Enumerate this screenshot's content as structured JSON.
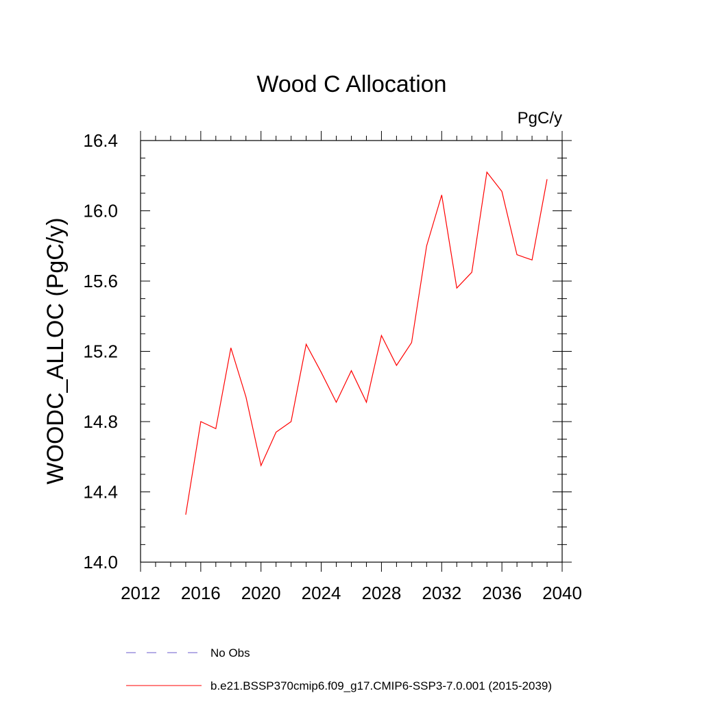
{
  "chart_data": {
    "type": "line",
    "title": "Wood C Allocation",
    "units_label": "PgC/y",
    "ylabel": "WOODC_ALLOC  (PgC/y)",
    "xlabel": "",
    "xlim": [
      2012,
      2040
    ],
    "ylim": [
      14.0,
      16.4
    ],
    "x_ticks": [
      2012,
      2016,
      2020,
      2024,
      2028,
      2032,
      2036,
      2040
    ],
    "x_tick_labels": [
      "2012",
      "2016",
      "2020",
      "2024",
      "2028",
      "2032",
      "2036",
      "2040"
    ],
    "y_ticks": [
      14.0,
      14.4,
      14.8,
      15.2,
      15.6,
      16.0,
      16.4
    ],
    "y_tick_labels": [
      "14.0",
      "14.4",
      "14.8",
      "15.2",
      "15.6",
      "16.0",
      "16.4"
    ],
    "grid": false,
    "legend_position": "bottom",
    "series": [
      {
        "name": "b.e21.BSSP370cmip6.f09_g17.CMIP6-SSP3-7.0.001 (2015-2039)",
        "color": "#ff0000",
        "style": "solid",
        "x": [
          2015,
          2016,
          2017,
          2018,
          2019,
          2020,
          2021,
          2022,
          2023,
          2024,
          2025,
          2026,
          2027,
          2028,
          2029,
          2030,
          2031,
          2032,
          2033,
          2034,
          2035,
          2036,
          2037,
          2038,
          2039
        ],
        "y": [
          14.27,
          14.8,
          14.76,
          15.22,
          14.94,
          14.55,
          14.74,
          14.8,
          15.24,
          15.08,
          14.91,
          15.09,
          14.91,
          15.29,
          15.12,
          15.25,
          15.8,
          16.09,
          15.56,
          15.65,
          16.22,
          16.11,
          15.75,
          15.72,
          16.18
        ]
      }
    ],
    "legend": [
      {
        "label": "No Obs",
        "color": "#6a5acd",
        "style": "dashed"
      },
      {
        "label": "b.e21.BSSP370cmip6.f09_g17.CMIP6-SSP3-7.0.001 (2015-2039)",
        "color": "#ff0000",
        "style": "solid"
      }
    ]
  }
}
